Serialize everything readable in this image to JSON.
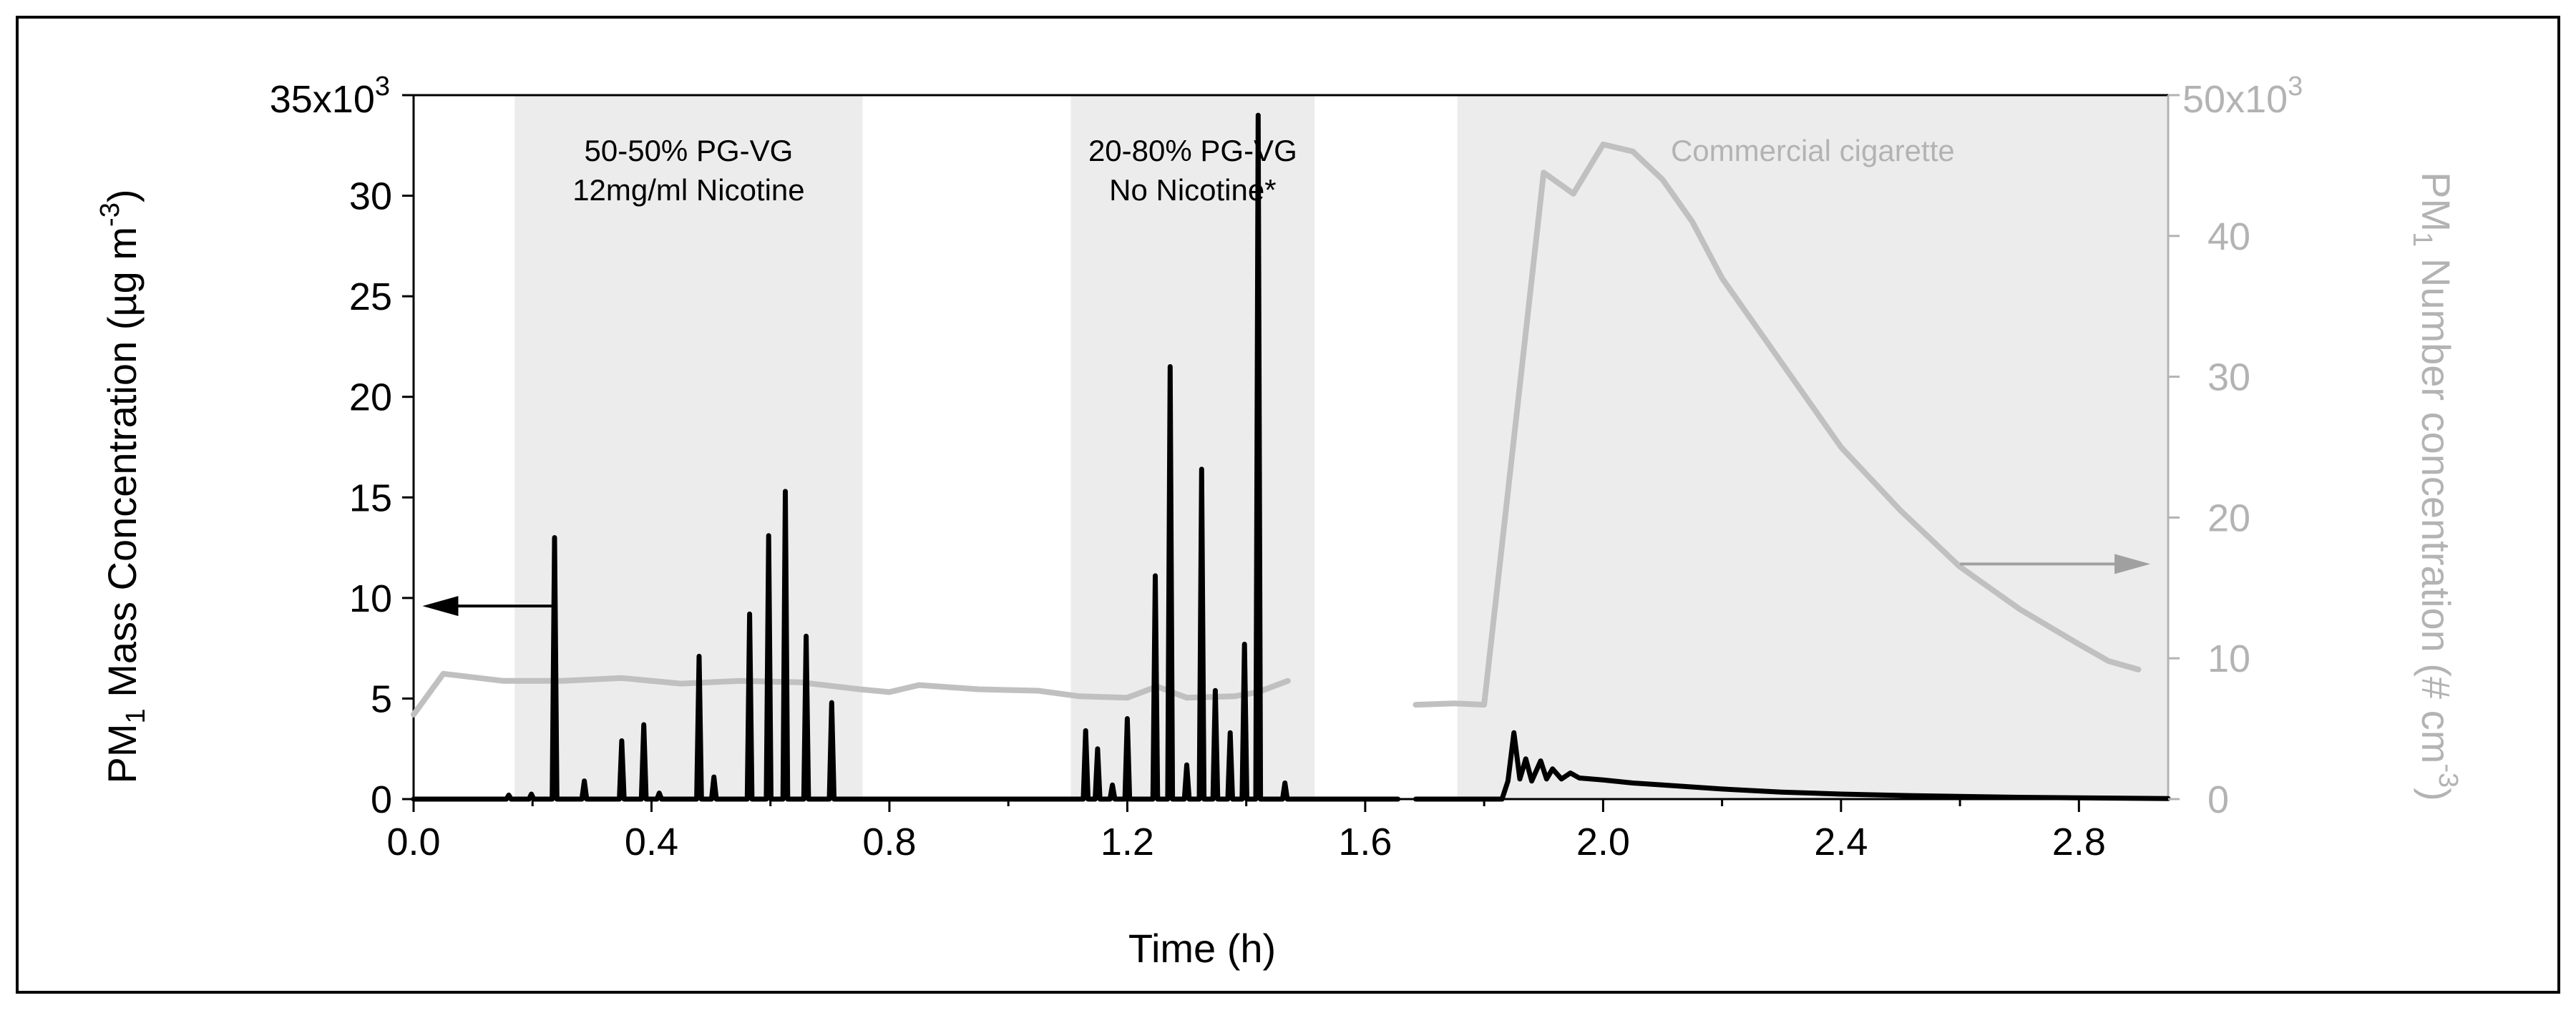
{
  "chart_data": {
    "type": "line",
    "xlabel": "Time (h)",
    "xlim": [
      0,
      2.95
    ],
    "x_ticks": [
      "0.0",
      "0.4",
      "0.8",
      "1.2",
      "1.6",
      "2.0",
      "2.4",
      "2.8"
    ],
    "x_tick_values": [
      0.0,
      0.4,
      0.8,
      1.2,
      1.6,
      2.0,
      2.4,
      2.8
    ],
    "y_left": {
      "label_main": "PM",
      "label_sub": "1",
      "label_rest": " Mass Concentration (µg m",
      "label_sup": "-3",
      "label_end": ")",
      "lim": [
        0,
        35000
      ],
      "ticks": [
        "0",
        "5",
        "10",
        "15",
        "20",
        "25",
        "30"
      ],
      "tick_values": [
        0,
        5000,
        10000,
        15000,
        20000,
        25000,
        30000
      ],
      "top_tick_mantissa": "35x10",
      "top_tick_exp": "3",
      "color": "#000000"
    },
    "y_right": {
      "label_main": "PM",
      "label_sub": "1",
      "label_rest": " Number concentration (# cm",
      "label_sup": "-3",
      "label_end": ")",
      "lim": [
        0,
        50000
      ],
      "ticks": [
        "0",
        "10",
        "20",
        "30",
        "40"
      ],
      "tick_values": [
        0,
        10000,
        20000,
        30000,
        40000
      ],
      "top_tick_mantissa": "50x10",
      "top_tick_exp": "3",
      "color": "#b3b3b3"
    },
    "shaded_regions": [
      {
        "x0": 0.17,
        "x1": 0.755,
        "label_lines": [
          "50-50% PG-VG",
          "12mg/ml Nicotine"
        ],
        "label_color": "#000000"
      },
      {
        "x0": 1.105,
        "x1": 1.515,
        "label_lines": [
          "20-80% PG-VG",
          "No Nicotine*"
        ],
        "label_color": "#000000"
      },
      {
        "x0": 1.755,
        "x1": 2.95,
        "label_lines": [
          "Commercial cigarette"
        ],
        "label_color": "#b3b3b3"
      }
    ],
    "series": [
      {
        "axis": "left",
        "color": "#000000",
        "segments": [
          {
            "baseline": 0,
            "peaks": [
              {
                "x": 0.16,
                "y": 200
              },
              {
                "x": 0.198,
                "y": 250
              },
              {
                "x": 0.237,
                "y": 13000
              },
              {
                "x": 0.287,
                "y": 900
              },
              {
                "x": 0.35,
                "y": 2900
              },
              {
                "x": 0.387,
                "y": 3700
              },
              {
                "x": 0.413,
                "y": 300
              },
              {
                "x": 0.48,
                "y": 7100
              },
              {
                "x": 0.505,
                "y": 1100
              },
              {
                "x": 0.565,
                "y": 9200
              },
              {
                "x": 0.597,
                "y": 13100
              },
              {
                "x": 0.625,
                "y": 15300
              },
              {
                "x": 0.66,
                "y": 8100
              },
              {
                "x": 0.703,
                "y": 4800
              },
              {
                "x": 1.13,
                "y": 3400
              },
              {
                "x": 1.15,
                "y": 2500
              },
              {
                "x": 1.175,
                "y": 700
              },
              {
                "x": 1.2,
                "y": 4000
              },
              {
                "x": 1.247,
                "y": 11100
              },
              {
                "x": 1.272,
                "y": 21500
              },
              {
                "x": 1.3,
                "y": 1700
              },
              {
                "x": 1.325,
                "y": 16400
              },
              {
                "x": 1.348,
                "y": 5400
              },
              {
                "x": 1.373,
                "y": 3300
              },
              {
                "x": 1.397,
                "y": 7700
              },
              {
                "x": 1.42,
                "y": 34000
              },
              {
                "x": 1.465,
                "y": 800
              }
            ],
            "x_start": 0.0,
            "x_end": 1.655
          },
          {
            "points": [
              [
                1.685,
                0
              ],
              [
                1.83,
                0
              ],
              [
                1.84,
                900
              ],
              [
                1.85,
                3300
              ],
              [
                1.86,
                1000
              ],
              [
                1.87,
                2000
              ],
              [
                1.88,
                900
              ],
              [
                1.895,
                1900
              ],
              [
                1.905,
                1000
              ],
              [
                1.915,
                1500
              ],
              [
                1.93,
                1000
              ],
              [
                1.945,
                1300
              ],
              [
                1.96,
                1050
              ],
              [
                2.0,
                950
              ],
              [
                2.05,
                800
              ],
              [
                2.1,
                700
              ],
              [
                2.2,
                500
              ],
              [
                2.3,
                350
              ],
              [
                2.4,
                250
              ],
              [
                2.5,
                180
              ],
              [
                2.6,
                130
              ],
              [
                2.7,
                90
              ],
              [
                2.8,
                60
              ],
              [
                2.95,
                30
              ]
            ]
          }
        ]
      },
      {
        "axis": "right",
        "color": "#c0c0c0",
        "segments": [
          {
            "points": [
              [
                0.0,
                6000
              ],
              [
                0.05,
                8900
              ],
              [
                0.15,
                8400
              ],
              [
                0.25,
                8400
              ],
              [
                0.35,
                8600
              ],
              [
                0.45,
                8200
              ],
              [
                0.55,
                8400
              ],
              [
                0.65,
                8300
              ],
              [
                0.75,
                7800
              ],
              [
                0.8,
                7600
              ],
              [
                0.85,
                8100
              ],
              [
                0.95,
                7800
              ],
              [
                1.05,
                7700
              ],
              [
                1.12,
                7300
              ],
              [
                1.2,
                7200
              ],
              [
                1.25,
                8000
              ],
              [
                1.3,
                7200
              ],
              [
                1.38,
                7300
              ],
              [
                1.42,
                7600
              ],
              [
                1.47,
                8400
              ]
            ]
          },
          {
            "points": [
              [
                1.685,
                6700
              ],
              [
                1.75,
                6800
              ],
              [
                1.8,
                6700
              ],
              [
                1.9,
                44500
              ],
              [
                1.95,
                43000
              ],
              [
                2.0,
                46500
              ],
              [
                2.05,
                46000
              ],
              [
                2.1,
                44000
              ],
              [
                2.15,
                41000
              ],
              [
                2.2,
                37000
              ],
              [
                2.3,
                31000
              ],
              [
                2.4,
                25000
              ],
              [
                2.5,
                20500
              ],
              [
                2.6,
                16500
              ],
              [
                2.7,
                13500
              ],
              [
                2.8,
                11000
              ],
              [
                2.85,
                9800
              ],
              [
                2.9,
                9200
              ]
            ]
          }
        ]
      }
    ],
    "arrows": [
      {
        "direction": "left",
        "x_from": 0.24,
        "x_to": 0.015,
        "y": 9600,
        "axis": "left",
        "color": "#000000"
      },
      {
        "direction": "right",
        "x_from": 2.6,
        "x_to": 2.92,
        "y": 16700,
        "axis": "right",
        "color": "#a0a0a0"
      }
    ]
  }
}
